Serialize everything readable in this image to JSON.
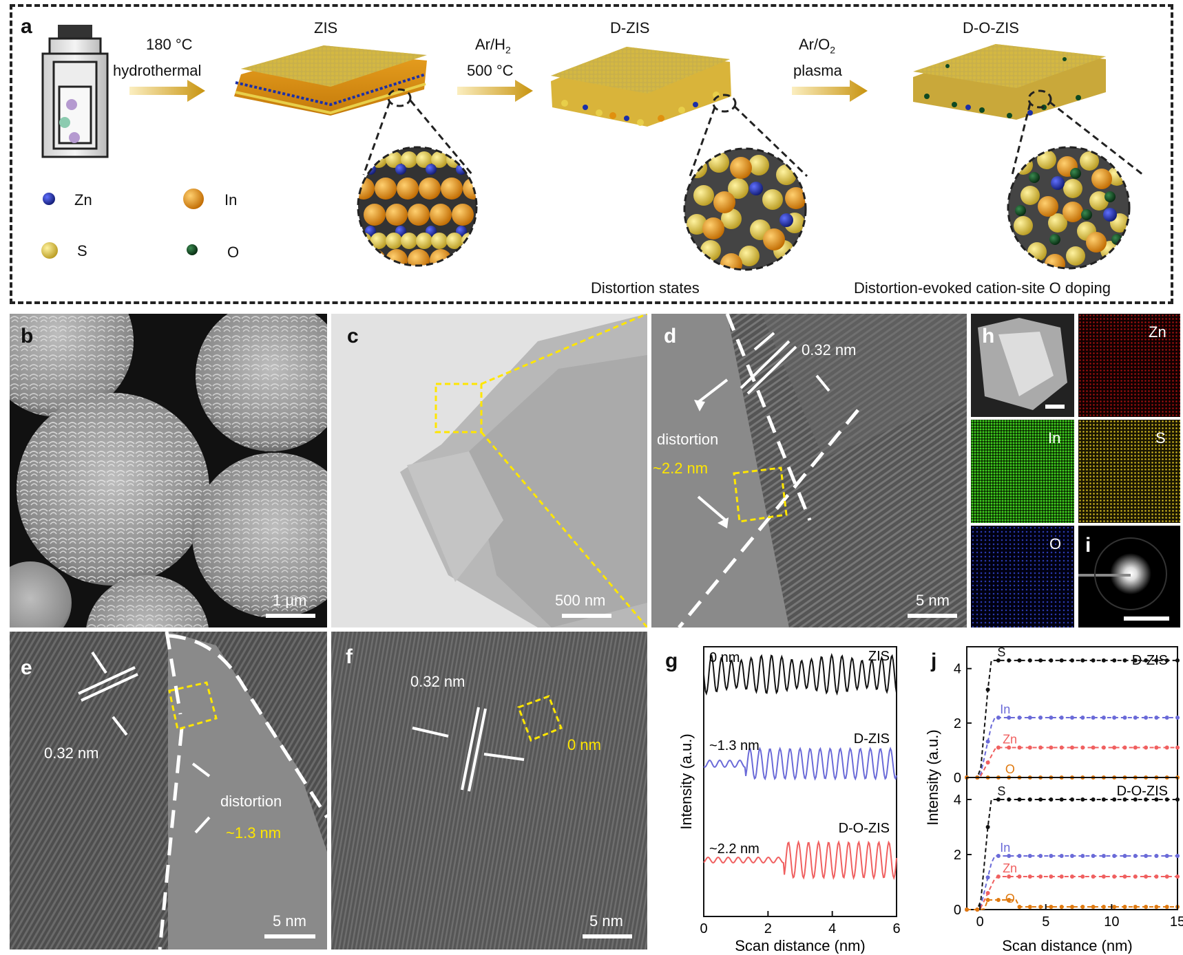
{
  "panel_a": {
    "label": "a",
    "step1": {
      "line1": "180 °C",
      "line2": "hydrothermal"
    },
    "step2": {
      "line1": "Ar/H",
      "line1_sub": "2",
      "line2": "500 °C"
    },
    "step3": {
      "line1": "Ar/O",
      "line1_sub": "2",
      "line2": "plasma"
    },
    "stages": [
      "ZIS",
      "D-ZIS",
      "D-O-ZIS"
    ],
    "legend": [
      {
        "symbol": "Zn",
        "color": "#1b2fa8"
      },
      {
        "symbol": "In",
        "color": "#e0900e"
      },
      {
        "symbol": "S",
        "color": "#e8cf4a"
      },
      {
        "symbol": "O",
        "color": "#0f4a22"
      }
    ],
    "caption_distortion": "Distortion states",
    "caption_doping": "Distortion-evoked cation-site O doping"
  },
  "panel_b": {
    "label": "b",
    "scale": "1 μm"
  },
  "panel_c": {
    "label": "c",
    "scale": "500 nm"
  },
  "panel_d": {
    "label": "d",
    "spacing": "0.32 nm",
    "note": "distortion",
    "thickness": "~2.2 nm",
    "scale": "5 nm"
  },
  "panel_e": {
    "label": "e",
    "spacing": "0.32 nm",
    "note": "distortion",
    "thickness": "~1.3 nm",
    "scale": "5 nm"
  },
  "panel_f": {
    "label": "f",
    "spacing": "0.32 nm",
    "thickness": "0 nm",
    "scale": "5 nm"
  },
  "panel_h": {
    "label": "h",
    "maps": [
      "Zn",
      "In",
      "S",
      "O"
    ]
  },
  "panel_i": {
    "label": "i"
  },
  "chart_data": [
    {
      "panel": "g",
      "type": "line",
      "xlabel": "Scan distance (nm)",
      "ylabel": "Intensity (a.u.)",
      "xlim": [
        0,
        6
      ],
      "xticks": [
        0,
        2,
        4,
        6
      ],
      "series": [
        {
          "name": "ZIS",
          "thickness": "0 nm",
          "color": "#111111"
        },
        {
          "name": "D-ZIS",
          "thickness": "~1.3 nm",
          "color": "#6a6ad8"
        },
        {
          "name": "D-O-ZIS",
          "thickness": "~2.2 nm",
          "color": "#f06060"
        }
      ]
    },
    {
      "panel": "j",
      "type": "line",
      "xlabel": "Scan distance (nm)",
      "ylabel": "Intensity (a.u.)",
      "xlim": [
        -1,
        15
      ],
      "ylim": [
        0,
        4.6
      ],
      "xticks": [
        0,
        5,
        10,
        15
      ],
      "yticks": [
        0,
        2,
        4
      ],
      "subplots": [
        {
          "title": "D-ZIS",
          "series": [
            {
              "name": "S",
              "color": "#111111",
              "plateau": 4.3
            },
            {
              "name": "In",
              "color": "#6a6ad8",
              "plateau": 2.2
            },
            {
              "name": "Zn",
              "color": "#f06060",
              "plateau": 1.1
            },
            {
              "name": "O",
              "color": "#e07a10",
              "plateau": 0.0
            }
          ]
        },
        {
          "title": "D-O-ZIS",
          "series": [
            {
              "name": "S",
              "color": "#111111",
              "plateau": 4.0
            },
            {
              "name": "In",
              "color": "#6a6ad8",
              "plateau": 1.95
            },
            {
              "name": "Zn",
              "color": "#f06060",
              "plateau": 1.2
            },
            {
              "name": "O",
              "color": "#e07a10",
              "plateau": 0.1
            }
          ]
        }
      ]
    }
  ]
}
